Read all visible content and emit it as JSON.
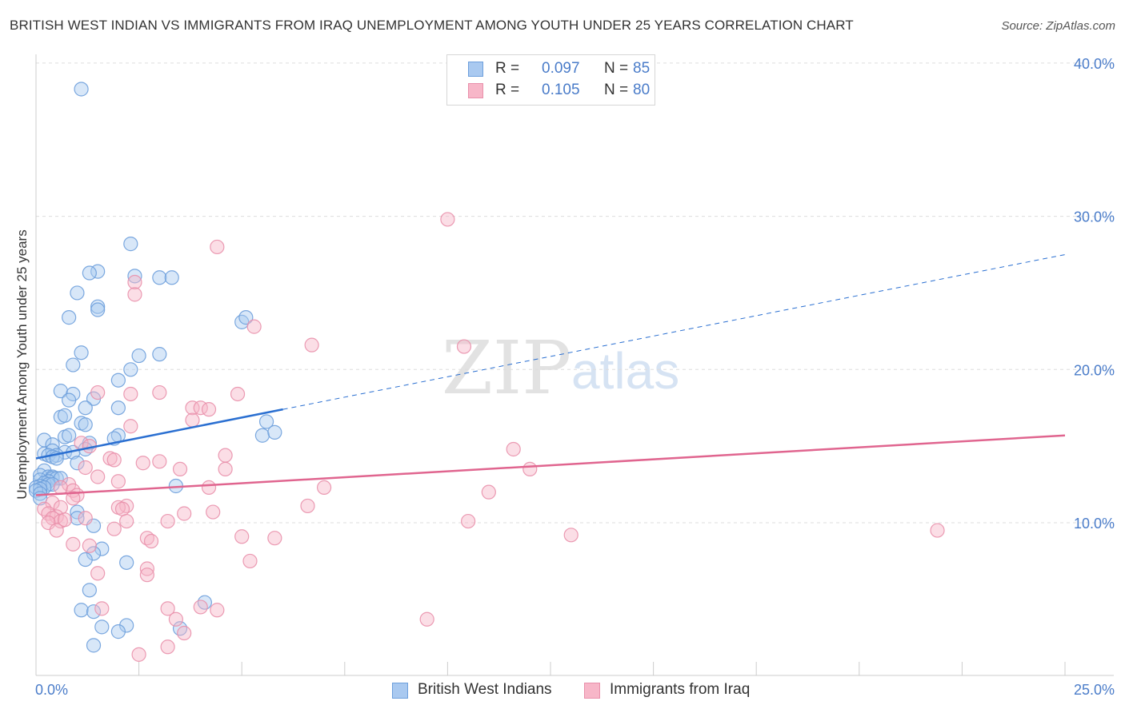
{
  "header": {
    "title": "BRITISH WEST INDIAN VS IMMIGRANTS FROM IRAQ UNEMPLOYMENT AMONG YOUTH UNDER 25 YEARS CORRELATION CHART",
    "source": "Source: ZipAtlas.com"
  },
  "watermark": {
    "zip": "ZIP",
    "atlas": "atlas"
  },
  "legend": {
    "rows": [
      {
        "r_label": "R =",
        "r_value": "0.097",
        "n_label": "N =",
        "n_value": "85"
      },
      {
        "r_label": "R =",
        "r_value": "0.105",
        "n_label": "N =",
        "n_value": "80"
      }
    ]
  },
  "bottom_legend": {
    "series1": "British West Indians",
    "series2": "Immigrants from Iraq"
  },
  "colors": {
    "blue_fill": "#a9c9f0",
    "blue_stroke": "#6d9fdc",
    "blue_line": "#2a6fd1",
    "pink_fill": "#f7b6c8",
    "pink_stroke": "#e990ab",
    "pink_line": "#e0658f",
    "axis_text": "#4a7cc9",
    "grid": "#dddddd"
  },
  "chart_data": {
    "type": "scatter",
    "title": "BRITISH WEST INDIAN VS IMMIGRANTS FROM IRAQ UNEMPLOYMENT AMONG YOUTH UNDER 25 YEARS CORRELATION CHART",
    "xlabel": "",
    "ylabel": "Unemployment Among Youth under 25 years",
    "xlim": [
      0,
      25
    ],
    "ylim": [
      0,
      40
    ],
    "x_tick_labels": [
      "0.0%",
      "25.0%"
    ],
    "y_ticks": [
      {
        "value": 10,
        "label": "10.0%"
      },
      {
        "value": 20,
        "label": "20.0%"
      },
      {
        "value": 30,
        "label": "30.0%"
      },
      {
        "value": 40,
        "label": "40.0%"
      }
    ],
    "series": [
      {
        "name": "British West Indians",
        "r": 0.097,
        "n": 85,
        "trend": {
          "x_start": 0,
          "y_start": 14.2,
          "x_solid_end": 6.0,
          "y_solid_end": 17.4,
          "x_end": 25,
          "y_end": 27.5
        },
        "points": [
          [
            1.1,
            38.3
          ],
          [
            2.3,
            28.2
          ],
          [
            1.5,
            26.4
          ],
          [
            1.3,
            26.3
          ],
          [
            2.4,
            26.1
          ],
          [
            3.0,
            26.0
          ],
          [
            3.3,
            26.0
          ],
          [
            1.0,
            25.0
          ],
          [
            1.5,
            24.1
          ],
          [
            1.5,
            23.9
          ],
          [
            0.8,
            23.4
          ],
          [
            5.0,
            23.1
          ],
          [
            5.1,
            23.4
          ],
          [
            1.1,
            21.1
          ],
          [
            2.5,
            20.9
          ],
          [
            3.0,
            21.0
          ],
          [
            0.9,
            20.3
          ],
          [
            2.3,
            20.0
          ],
          [
            2.0,
            19.3
          ],
          [
            0.6,
            18.6
          ],
          [
            0.9,
            18.4
          ],
          [
            0.8,
            18.0
          ],
          [
            1.4,
            18.1
          ],
          [
            2.0,
            17.5
          ],
          [
            1.2,
            17.5
          ],
          [
            0.6,
            16.9
          ],
          [
            0.7,
            17.0
          ],
          [
            1.1,
            16.5
          ],
          [
            1.2,
            16.4
          ],
          [
            5.6,
            16.6
          ],
          [
            0.2,
            15.4
          ],
          [
            0.7,
            15.6
          ],
          [
            0.8,
            15.7
          ],
          [
            2.0,
            15.7
          ],
          [
            1.9,
            15.5
          ],
          [
            5.5,
            15.7
          ],
          [
            5.8,
            15.9
          ],
          [
            0.4,
            15.1
          ],
          [
            1.3,
            15.2
          ],
          [
            1.2,
            14.8
          ],
          [
            0.2,
            14.5
          ],
          [
            0.4,
            14.7
          ],
          [
            0.7,
            14.6
          ],
          [
            0.9,
            14.6
          ],
          [
            0.3,
            14.4
          ],
          [
            0.5,
            14.4
          ],
          [
            0.4,
            14.3
          ],
          [
            0.5,
            14.2
          ],
          [
            1.0,
            13.9
          ],
          [
            0.2,
            13.4
          ],
          [
            0.1,
            13.1
          ],
          [
            0.3,
            13.0
          ],
          [
            0.4,
            13.0
          ],
          [
            0.4,
            12.9
          ],
          [
            0.5,
            12.9
          ],
          [
            0.1,
            12.8
          ],
          [
            0.3,
            12.7
          ],
          [
            0.6,
            12.9
          ],
          [
            0.2,
            12.6
          ],
          [
            0.3,
            12.5
          ],
          [
            0.4,
            12.5
          ],
          [
            0.1,
            12.4
          ],
          [
            0.0,
            12.3
          ],
          [
            0.2,
            12.3
          ],
          [
            0.1,
            12.2
          ],
          [
            0.0,
            12.1
          ],
          [
            0.1,
            11.9
          ],
          [
            3.4,
            12.4
          ],
          [
            0.1,
            11.6
          ],
          [
            1.0,
            10.7
          ],
          [
            1.0,
            10.3
          ],
          [
            1.4,
            9.8
          ],
          [
            1.6,
            8.3
          ],
          [
            1.4,
            8.0
          ],
          [
            1.2,
            7.6
          ],
          [
            2.2,
            7.4
          ],
          [
            1.3,
            5.6
          ],
          [
            4.1,
            4.8
          ],
          [
            1.1,
            4.3
          ],
          [
            1.4,
            4.2
          ],
          [
            1.6,
            3.2
          ],
          [
            2.2,
            3.3
          ],
          [
            3.5,
            3.1
          ],
          [
            2.0,
            2.9
          ],
          [
            1.4,
            2.0
          ]
        ]
      },
      {
        "name": "Immigrants from Iraq",
        "r": 0.105,
        "n": 80,
        "trend": {
          "x_start": 0,
          "y_start": 11.8,
          "x_end": 25,
          "y_end": 15.7
        },
        "points": [
          [
            10.0,
            29.8
          ],
          [
            4.4,
            28.0
          ],
          [
            2.4,
            25.7
          ],
          [
            2.4,
            24.9
          ],
          [
            5.3,
            22.8
          ],
          [
            6.7,
            21.6
          ],
          [
            10.4,
            21.5
          ],
          [
            1.5,
            18.5
          ],
          [
            2.3,
            18.4
          ],
          [
            3.0,
            18.5
          ],
          [
            4.9,
            18.4
          ],
          [
            3.8,
            17.5
          ],
          [
            4.0,
            17.5
          ],
          [
            4.2,
            17.4
          ],
          [
            3.8,
            16.7
          ],
          [
            2.3,
            16.3
          ],
          [
            1.1,
            15.2
          ],
          [
            1.3,
            15.0
          ],
          [
            11.6,
            14.8
          ],
          [
            4.6,
            14.4
          ],
          [
            1.8,
            14.2
          ],
          [
            1.9,
            14.1
          ],
          [
            3.0,
            14.0
          ],
          [
            2.6,
            13.9
          ],
          [
            1.2,
            13.6
          ],
          [
            3.5,
            13.5
          ],
          [
            4.6,
            13.5
          ],
          [
            12.0,
            13.5
          ],
          [
            1.5,
            13.0
          ],
          [
            2.0,
            12.7
          ],
          [
            0.8,
            12.5
          ],
          [
            4.2,
            12.3
          ],
          [
            7.0,
            12.3
          ],
          [
            0.6,
            12.3
          ],
          [
            0.9,
            12.1
          ],
          [
            1.0,
            11.8
          ],
          [
            11.0,
            12.0
          ],
          [
            0.9,
            11.6
          ],
          [
            0.4,
            11.3
          ],
          [
            0.6,
            11.0
          ],
          [
            6.6,
            11.1
          ],
          [
            2.2,
            11.1
          ],
          [
            2.0,
            11.0
          ],
          [
            2.1,
            10.9
          ],
          [
            0.2,
            10.9
          ],
          [
            0.3,
            10.6
          ],
          [
            3.6,
            10.6
          ],
          [
            4.3,
            10.7
          ],
          [
            0.5,
            10.4
          ],
          [
            0.4,
            10.3
          ],
          [
            0.6,
            10.1
          ],
          [
            0.7,
            10.2
          ],
          [
            1.2,
            10.3
          ],
          [
            0.3,
            10.0
          ],
          [
            3.2,
            10.1
          ],
          [
            10.5,
            10.1
          ],
          [
            2.2,
            10.1
          ],
          [
            1.9,
            9.6
          ],
          [
            0.5,
            9.5
          ],
          [
            21.9,
            9.5
          ],
          [
            13.0,
            9.2
          ],
          [
            5.0,
            9.1
          ],
          [
            5.8,
            9.0
          ],
          [
            2.7,
            9.0
          ],
          [
            2.8,
            8.8
          ],
          [
            0.9,
            8.6
          ],
          [
            1.3,
            8.5
          ],
          [
            5.2,
            7.5
          ],
          [
            2.7,
            7.0
          ],
          [
            1.5,
            6.7
          ],
          [
            2.7,
            6.6
          ],
          [
            3.2,
            4.4
          ],
          [
            1.6,
            4.4
          ],
          [
            4.0,
            4.5
          ],
          [
            4.4,
            4.3
          ],
          [
            3.4,
            3.7
          ],
          [
            9.5,
            3.7
          ],
          [
            3.6,
            2.8
          ],
          [
            3.2,
            1.9
          ],
          [
            2.5,
            1.4
          ]
        ]
      }
    ]
  }
}
